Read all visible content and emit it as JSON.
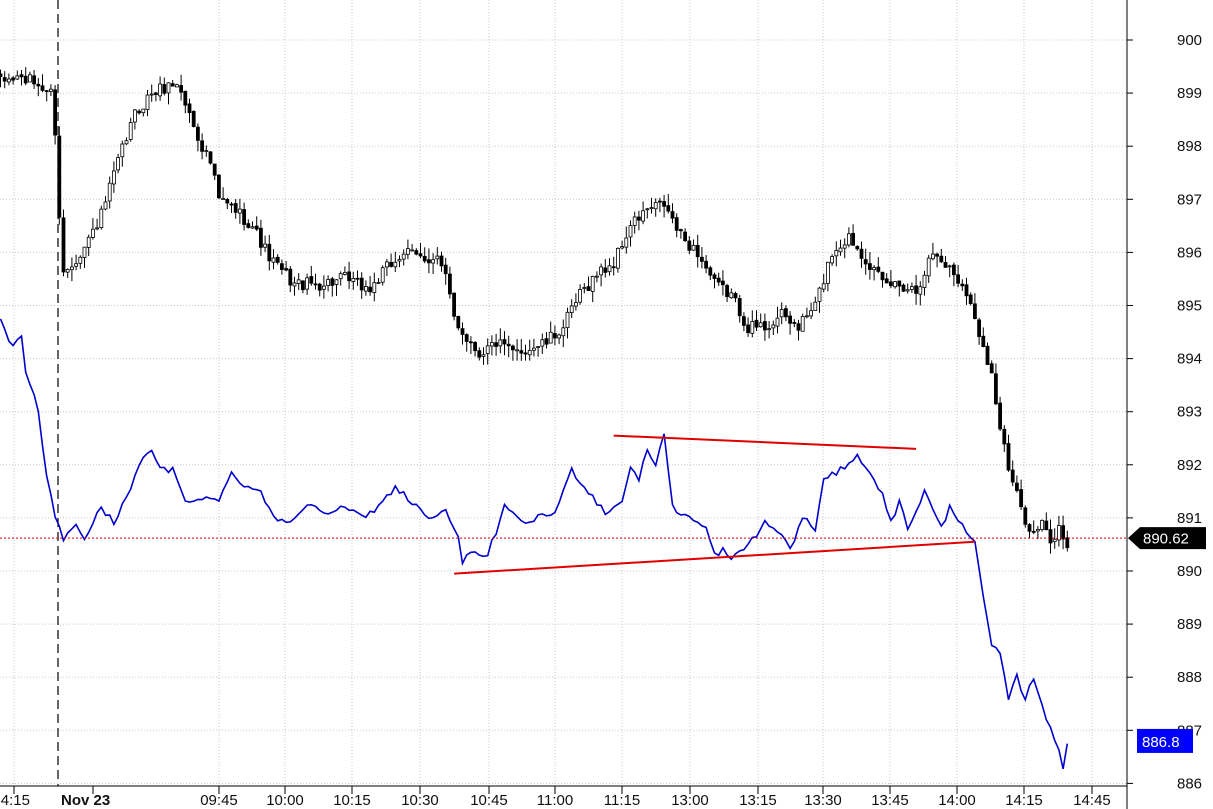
{
  "chart_data": {
    "type": "candlestick",
    "price_axis": {
      "ticks": [
        "900",
        "899",
        "898",
        "897",
        "896",
        "895",
        "894",
        "893",
        "892",
        "891",
        "890",
        "889",
        "888",
        "887",
        "886"
      ],
      "range": [
        885.85,
        900.7
      ],
      "position": "right"
    },
    "time_axis": {
      "labels": [
        "4:15",
        "Nov 23",
        "09:45",
        "10:00",
        "10:15",
        "10:30",
        "10:45",
        "11:00",
        "11:15",
        "13:00",
        "13:15",
        "13:30",
        "13:45",
        "14:00",
        "14:15",
        "14:45"
      ],
      "session_break_label": "Nov 23",
      "bar_count": 255
    },
    "grid": true,
    "price_series": {
      "anchors": [
        [
          0,
          899.2
        ],
        [
          4,
          899.3
        ],
        [
          8,
          899.2
        ],
        [
          12,
          899.0
        ],
        [
          13,
          898.3
        ],
        [
          14,
          896.7
        ],
        [
          15,
          895.6
        ],
        [
          17,
          895.8
        ],
        [
          20,
          896.1
        ],
        [
          24,
          896.7
        ],
        [
          28,
          897.7
        ],
        [
          32,
          898.6
        ],
        [
          36,
          899.0
        ],
        [
          42,
          899.2
        ],
        [
          44,
          898.8
        ],
        [
          46,
          898.4
        ],
        [
          48,
          898.0
        ],
        [
          50,
          897.7
        ],
        [
          52,
          897.0
        ],
        [
          56,
          896.8
        ],
        [
          60,
          896.5
        ],
        [
          64,
          895.9
        ],
        [
          70,
          895.4
        ],
        [
          76,
          895.4
        ],
        [
          82,
          895.5
        ],
        [
          88,
          895.3
        ],
        [
          92,
          895.7
        ],
        [
          96,
          896.0
        ],
        [
          100,
          895.9
        ],
        [
          104,
          895.9
        ],
        [
          106,
          895.5
        ],
        [
          108,
          894.8
        ],
        [
          110,
          894.5
        ],
        [
          114,
          894.1
        ],
        [
          118,
          894.3
        ],
        [
          122,
          894.1
        ],
        [
          126,
          894.2
        ],
        [
          130,
          894.3
        ],
        [
          134,
          894.6
        ],
        [
          138,
          895.2
        ],
        [
          142,
          895.6
        ],
        [
          146,
          895.8
        ],
        [
          150,
          896.5
        ],
        [
          154,
          896.8
        ],
        [
          158,
          896.9
        ],
        [
          162,
          896.3
        ],
        [
          166,
          896.0
        ],
        [
          170,
          895.4
        ],
        [
          174,
          895.2
        ],
        [
          178,
          894.6
        ],
        [
          182,
          894.6
        ],
        [
          186,
          894.8
        ],
        [
          190,
          894.6
        ],
        [
          194,
          895.0
        ],
        [
          198,
          896.0
        ],
        [
          202,
          896.3
        ],
        [
          206,
          895.9
        ],
        [
          210,
          895.4
        ],
        [
          214,
          895.4
        ],
        [
          218,
          895.3
        ],
        [
          222,
          896.0
        ],
        [
          226,
          895.7
        ],
        [
          230,
          895.3
        ],
        [
          232,
          894.7
        ],
        [
          234,
          894.3
        ],
        [
          236,
          893.7
        ],
        [
          238,
          892.7
        ],
        [
          240,
          891.9
        ],
        [
          242,
          891.4
        ],
        [
          244,
          891.0
        ],
        [
          246,
          890.7
        ],
        [
          248,
          890.9
        ],
        [
          250,
          890.5
        ],
        [
          252,
          890.8
        ],
        [
          254,
          890.5
        ]
      ]
    },
    "blue_line": {
      "color": "#0000cc",
      "y_anchors": [
        [
          0,
          894.7
        ],
        [
          3,
          894.2
        ],
        [
          5,
          894.4
        ],
        [
          6,
          893.8
        ],
        [
          9,
          893.0
        ],
        [
          11,
          891.8
        ],
        [
          13,
          891.0
        ],
        [
          15,
          890.6
        ],
        [
          18,
          890.9
        ],
        [
          20,
          890.6
        ],
        [
          24,
          891.2
        ],
        [
          27,
          890.9
        ],
        [
          31,
          891.6
        ],
        [
          34,
          892.1
        ],
        [
          36,
          892.3
        ],
        [
          38,
          891.9
        ],
        [
          41,
          891.9
        ],
        [
          44,
          891.3
        ],
        [
          48,
          891.4
        ],
        [
          52,
          891.3
        ],
        [
          55,
          891.9
        ],
        [
          58,
          891.6
        ],
        [
          62,
          891.5
        ],
        [
          66,
          890.9
        ],
        [
          70,
          891.0
        ],
        [
          74,
          891.3
        ],
        [
          78,
          891.1
        ],
        [
          82,
          891.2
        ],
        [
          86,
          891.0
        ],
        [
          90,
          891.2
        ],
        [
          94,
          891.6
        ],
        [
          98,
          891.3
        ],
        [
          102,
          891.0
        ],
        [
          106,
          891.1
        ],
        [
          109,
          890.7
        ],
        [
          110,
          890.2
        ],
        [
          112,
          890.3
        ],
        [
          116,
          890.3
        ],
        [
          120,
          891.2
        ],
        [
          124,
          890.9
        ],
        [
          128,
          891.0
        ],
        [
          132,
          891.1
        ],
        [
          136,
          891.9
        ],
        [
          140,
          891.5
        ],
        [
          144,
          891.1
        ],
        [
          148,
          891.3
        ],
        [
          150,
          892.0
        ],
        [
          152,
          891.7
        ],
        [
          154,
          892.3
        ],
        [
          156,
          892.0
        ],
        [
          158,
          892.6
        ],
        [
          159,
          891.9
        ],
        [
          160,
          891.2
        ],
        [
          164,
          891.0
        ],
        [
          168,
          890.8
        ],
        [
          170,
          890.3
        ],
        [
          172,
          890.4
        ],
        [
          174,
          890.2
        ],
        [
          178,
          890.5
        ],
        [
          182,
          890.9
        ],
        [
          186,
          890.7
        ],
        [
          188,
          890.4
        ],
        [
          191,
          891.0
        ],
        [
          194,
          890.8
        ],
        [
          196,
          891.7
        ],
        [
          200,
          891.9
        ],
        [
          204,
          892.2
        ],
        [
          207,
          891.8
        ],
        [
          210,
          891.5
        ],
        [
          212,
          890.9
        ],
        [
          214,
          891.3
        ],
        [
          216,
          890.8
        ],
        [
          220,
          891.5
        ],
        [
          224,
          890.8
        ],
        [
          226,
          891.2
        ],
        [
          229,
          890.9
        ],
        [
          232,
          890.5
        ],
        [
          234,
          889.5
        ],
        [
          236,
          888.6
        ],
        [
          238,
          888.4
        ],
        [
          240,
          887.6
        ],
        [
          242,
          888.0
        ],
        [
          244,
          887.6
        ],
        [
          246,
          888.0
        ],
        [
          248,
          887.5
        ],
        [
          250,
          887.0
        ],
        [
          252,
          886.6
        ],
        [
          253,
          886.3
        ],
        [
          254,
          886.8
        ]
      ]
    },
    "current_price": {
      "value": 890.62,
      "label": "890.62",
      "badge_color": "#000000",
      "line_color": "#e00000"
    },
    "blue_last": {
      "value": 886.8,
      "label": "886.8",
      "badge_color": "#0000ff"
    },
    "trendlines": {
      "color": "#e00000",
      "lines": [
        {
          "from": [
            146,
            892.55
          ],
          "to": [
            218,
            892.3
          ]
        },
        {
          "from": [
            108,
            889.95
          ],
          "to": [
            232,
            890.55
          ]
        }
      ]
    },
    "colors": {
      "up_candle_fill": "#ffffff",
      "down_candle_fill": "#000000",
      "candle_outline": "#000000",
      "grid": "#c8c8c8",
      "session_line": "#000000"
    }
  }
}
